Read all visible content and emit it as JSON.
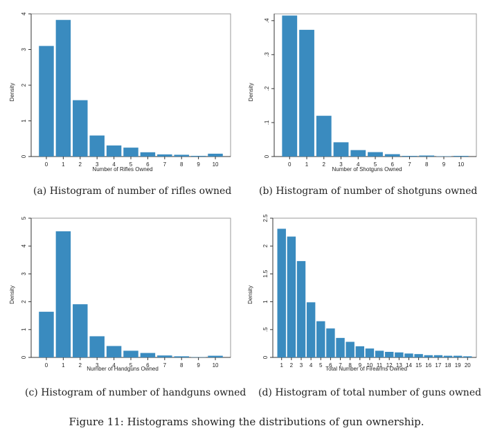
{
  "figure_caption": "Figure 11: Histograms showing the distributions of gun ownership.",
  "colors": {
    "bar": "#3a8bbf",
    "axis": "#333333",
    "plot_border": "#999999"
  },
  "chart_data": [
    {
      "id": "a",
      "type": "bar",
      "caption": "(a) Histogram of number of rifles owned",
      "xlabel": "Number of Rifles Owned",
      "ylabel": "Density",
      "categories": [
        0,
        1,
        2,
        3,
        4,
        5,
        6,
        7,
        8,
        9,
        10
      ],
      "values": [
        0.31,
        0.383,
        0.158,
        0.059,
        0.031,
        0.025,
        0.012,
        0.006,
        0.005,
        0.002,
        0.008
      ],
      "ylim": [
        0,
        0.4
      ],
      "yticks": [
        0,
        0.1,
        0.2,
        0.3,
        0.4
      ],
      "ytick_labels": [
        "0",
        "1",
        "2",
        "3",
        "4"
      ],
      "xticks": [
        0,
        1,
        2,
        3,
        4,
        5,
        6,
        7,
        8,
        9,
        10
      ],
      "xtick_labels": [
        "0",
        "1",
        "2",
        "3",
        "4",
        "5",
        "6",
        "7",
        "8",
        "9",
        "10"
      ]
    },
    {
      "id": "b",
      "type": "bar",
      "caption": "(b) Histogram of number of shotguns owned",
      "xlabel": "Number of Shotguns Owned",
      "ylabel": "Density",
      "categories": [
        0,
        1,
        2,
        3,
        4,
        5,
        6,
        7,
        8,
        9,
        10
      ],
      "values": [
        0.415,
        0.373,
        0.12,
        0.042,
        0.019,
        0.013,
        0.007,
        0.002,
        0.003,
        0.001,
        0.002
      ],
      "ylim": [
        0,
        0.42
      ],
      "yticks": [
        0,
        0.1,
        0.2,
        0.3,
        0.4
      ],
      "ytick_labels": [
        "0",
        ".1",
        ".2",
        ".3",
        ".4"
      ],
      "xticks": [
        0,
        1,
        2,
        3,
        4,
        5,
        6,
        7,
        8,
        9,
        10
      ],
      "xtick_labels": [
        "0",
        "1",
        "2",
        "3",
        "4",
        "5",
        "6",
        "7",
        "8",
        "9",
        "10"
      ]
    },
    {
      "id": "c",
      "type": "bar",
      "caption": "(c) Histogram of number of handguns owned",
      "xlabel": "Number of Handguns Owned",
      "ylabel": "Density",
      "categories": [
        0,
        1,
        2,
        3,
        4,
        5,
        6,
        7,
        8,
        9,
        10
      ],
      "values": [
        0.164,
        0.453,
        0.191,
        0.076,
        0.041,
        0.024,
        0.016,
        0.007,
        0.004,
        0.001,
        0.006
      ],
      "ylim": [
        0,
        0.5
      ],
      "yticks": [
        0,
        0.1,
        0.2,
        0.3,
        0.4,
        0.5
      ],
      "ytick_labels": [
        "0",
        "1",
        "2",
        "3",
        "4",
        "5"
      ],
      "xticks": [
        0,
        1,
        2,
        3,
        4,
        5,
        6,
        7,
        8,
        9,
        10
      ],
      "xtick_labels": [
        "0",
        "1",
        "2",
        "3",
        "4",
        "5",
        "6",
        "7",
        "8",
        "9",
        "10"
      ]
    },
    {
      "id": "d",
      "type": "bar",
      "caption": "(d) Histogram of total number of guns owned",
      "xlabel": "Total Number of Firearms Owned",
      "ylabel": "Density",
      "categories": [
        1,
        2,
        3,
        4,
        5,
        6,
        7,
        8,
        9,
        10,
        11,
        12,
        13,
        14,
        15,
        16,
        17,
        18,
        19,
        20
      ],
      "values": [
        0.231,
        0.217,
        0.173,
        0.099,
        0.065,
        0.052,
        0.035,
        0.028,
        0.02,
        0.016,
        0.012,
        0.01,
        0.009,
        0.007,
        0.006,
        0.004,
        0.004,
        0.003,
        0.003,
        0.002
      ],
      "ylim": [
        0,
        0.25
      ],
      "yticks": [
        0,
        0.05,
        0.1,
        0.15,
        0.2,
        0.25
      ],
      "ytick_labels": [
        "0",
        ".5",
        "1",
        "1.5",
        "2",
        "2.5"
      ],
      "xticks": [
        1,
        2,
        3,
        4,
        5,
        6,
        7,
        8,
        9,
        10,
        11,
        12,
        13,
        14,
        15,
        16,
        17,
        18,
        19,
        20
      ],
      "xtick_labels": [
        "1",
        "2",
        "3",
        "4",
        "5",
        "6",
        "7",
        "8",
        "9",
        "10",
        "11",
        "12",
        "13",
        "14",
        "15",
        "16",
        "17",
        "18",
        "19",
        "20"
      ]
    }
  ]
}
